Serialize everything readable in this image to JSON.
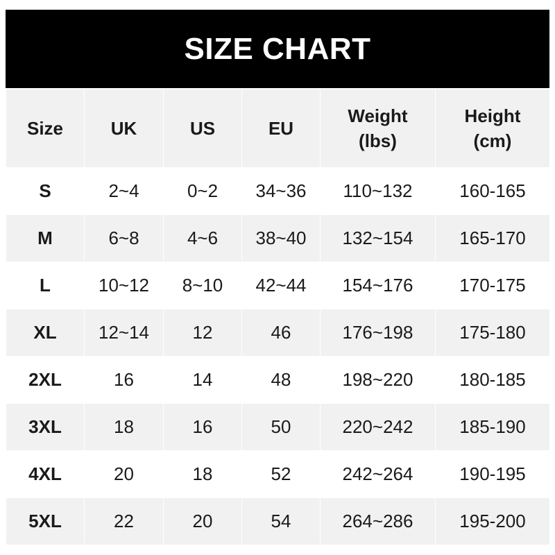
{
  "title": "SIZE CHART",
  "headers": [
    "Size",
    "UK",
    "US",
    "EU",
    "Weight\n(lbs)",
    "Height\n(cm)"
  ],
  "header_lines": [
    [
      "Size"
    ],
    [
      "UK"
    ],
    [
      "US"
    ],
    [
      "EU"
    ],
    [
      "Weight",
      "(lbs)"
    ],
    [
      "Height",
      "(cm)"
    ]
  ],
  "rows": [
    [
      "S",
      "2~4",
      "0~2",
      "34~36",
      "110~132",
      "160-165"
    ],
    [
      "M",
      "6~8",
      "4~6",
      "38~40",
      "132~154",
      "165-170"
    ],
    [
      "L",
      "10~12",
      "8~10",
      "42~44",
      "154~176",
      "170-175"
    ],
    [
      "XL",
      "12~14",
      "12",
      "46",
      "176~198",
      "175-180"
    ],
    [
      "2XL",
      "16",
      "14",
      "48",
      "198~220",
      "180-185"
    ],
    [
      "3XL",
      "18",
      "16",
      "50",
      "220~242",
      "185-190"
    ],
    [
      "4XL",
      "20",
      "18",
      "52",
      "242~264",
      "190-195"
    ],
    [
      "5XL",
      "22",
      "20",
      "54",
      "264~286",
      "195-200"
    ]
  ],
  "colors": {
    "title_bg": "#000000",
    "stripe": "#f1f1f1"
  }
}
